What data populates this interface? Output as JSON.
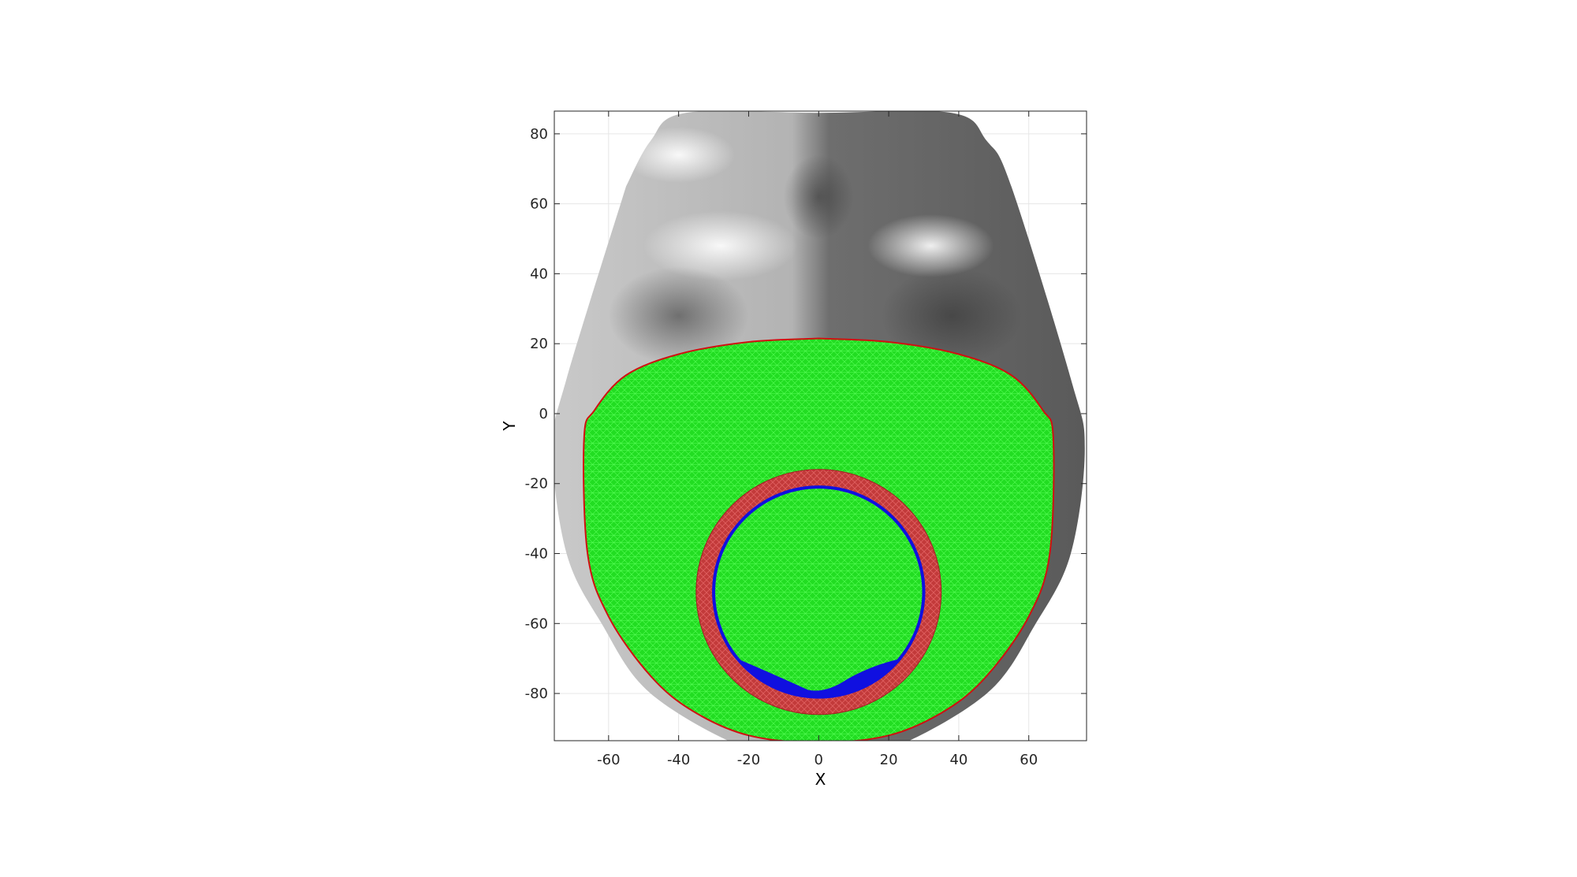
{
  "chart_data": {
    "type": "surface",
    "title": "",
    "xlabel": "X",
    "ylabel": "Y",
    "xlim": [
      -75.5,
      76.5
    ],
    "ylim": [
      -93.5,
      86.5
    ],
    "xticks": [
      -60,
      -40,
      -20,
      0,
      20,
      40,
      60
    ],
    "yticks": [
      -80,
      -60,
      -40,
      -20,
      0,
      20,
      40,
      60,
      80
    ],
    "grid": true,
    "layers": [
      {
        "name": "face-surface",
        "color": "#9a9a9a"
      },
      {
        "name": "mask-mesh",
        "color": "#22dd22",
        "edge_color": "#3cff3c",
        "boundary_color": "#d01010"
      },
      {
        "name": "seal-ring",
        "color": "#c83535",
        "center": [
          0,
          -51
        ],
        "inner_radius": 30,
        "outer_radius": 35
      },
      {
        "name": "inner-boundary",
        "color": "#1010e0",
        "center": [
          0,
          -51
        ],
        "radius": 30
      }
    ],
    "mask_outline": [
      [
        0,
        21.5
      ],
      [
        20,
        20.5
      ],
      [
        40,
        17
      ],
      [
        55,
        11
      ],
      [
        64,
        1
      ],
      [
        67,
        -7
      ],
      [
        66,
        -40
      ],
      [
        60,
        -58
      ],
      [
        48,
        -75
      ],
      [
        36,
        -85
      ],
      [
        20,
        -92
      ],
      [
        0,
        -94
      ],
      [
        -20,
        -92
      ],
      [
        -36,
        -85
      ],
      [
        -48,
        -75
      ],
      [
        -60,
        -58
      ],
      [
        -66,
        -40
      ],
      [
        -67,
        -7
      ],
      [
        -64,
        1
      ],
      [
        -55,
        11
      ],
      [
        -40,
        17
      ],
      [
        -20,
        20.5
      ],
      [
        0,
        21.5
      ]
    ],
    "face_outline": [
      [
        -55,
        65
      ],
      [
        -48,
        78
      ],
      [
        -38,
        86
      ],
      [
        0,
        86
      ],
      [
        38,
        86
      ],
      [
        48,
        78
      ],
      [
        55,
        65
      ],
      [
        72,
        10
      ],
      [
        76,
        -10
      ],
      [
        72,
        -40
      ],
      [
        62,
        -60
      ],
      [
        48,
        -80
      ],
      [
        20,
        -96
      ],
      [
        0,
        -98
      ],
      [
        -20,
        -96
      ],
      [
        -48,
        -80
      ],
      [
        -62,
        -60
      ],
      [
        -72,
        -40
      ],
      [
        -76,
        -10
      ],
      [
        -72,
        10
      ],
      [
        -55,
        65
      ]
    ]
  }
}
